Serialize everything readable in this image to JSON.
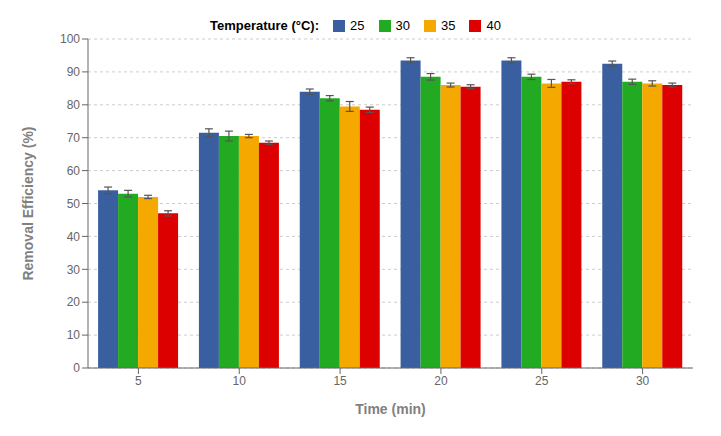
{
  "chart_data": {
    "type": "bar",
    "xlabel": "Time (min)",
    "ylabel": "Removal Efficiency (%)",
    "legend_title": "Temperature (°C):",
    "categories": [
      "5",
      "10",
      "15",
      "20",
      "25",
      "30"
    ],
    "series": [
      {
        "name": "25",
        "color": "#3A5FA0",
        "values": [
          54.0,
          71.5,
          84.0,
          93.5,
          93.5,
          92.5
        ],
        "errors": [
          1.0,
          1.2,
          0.8,
          0.8,
          0.8,
          0.8
        ]
      },
      {
        "name": "30",
        "color": "#22AA22",
        "values": [
          53.0,
          70.5,
          82.0,
          88.5,
          88.5,
          87.0
        ],
        "errors": [
          1.0,
          1.5,
          0.8,
          1.0,
          0.8,
          0.8
        ]
      },
      {
        "name": "35",
        "color": "#F5A800",
        "values": [
          52.0,
          70.5,
          79.5,
          86.0,
          86.5,
          86.5
        ],
        "errors": [
          0.5,
          0.5,
          1.5,
          0.6,
          1.2,
          0.8
        ]
      },
      {
        "name": "40",
        "color": "#DD0000",
        "values": [
          47.0,
          68.5,
          78.5,
          85.5,
          87.0,
          86.0
        ],
        "errors": [
          0.8,
          0.5,
          0.8,
          0.6,
          0.6,
          0.6
        ]
      }
    ],
    "ylim": [
      0,
      100
    ],
    "yticks": [
      0,
      10,
      20,
      30,
      40,
      50,
      60,
      70,
      80,
      90,
      100
    ],
    "grid": true,
    "legend": "top"
  }
}
